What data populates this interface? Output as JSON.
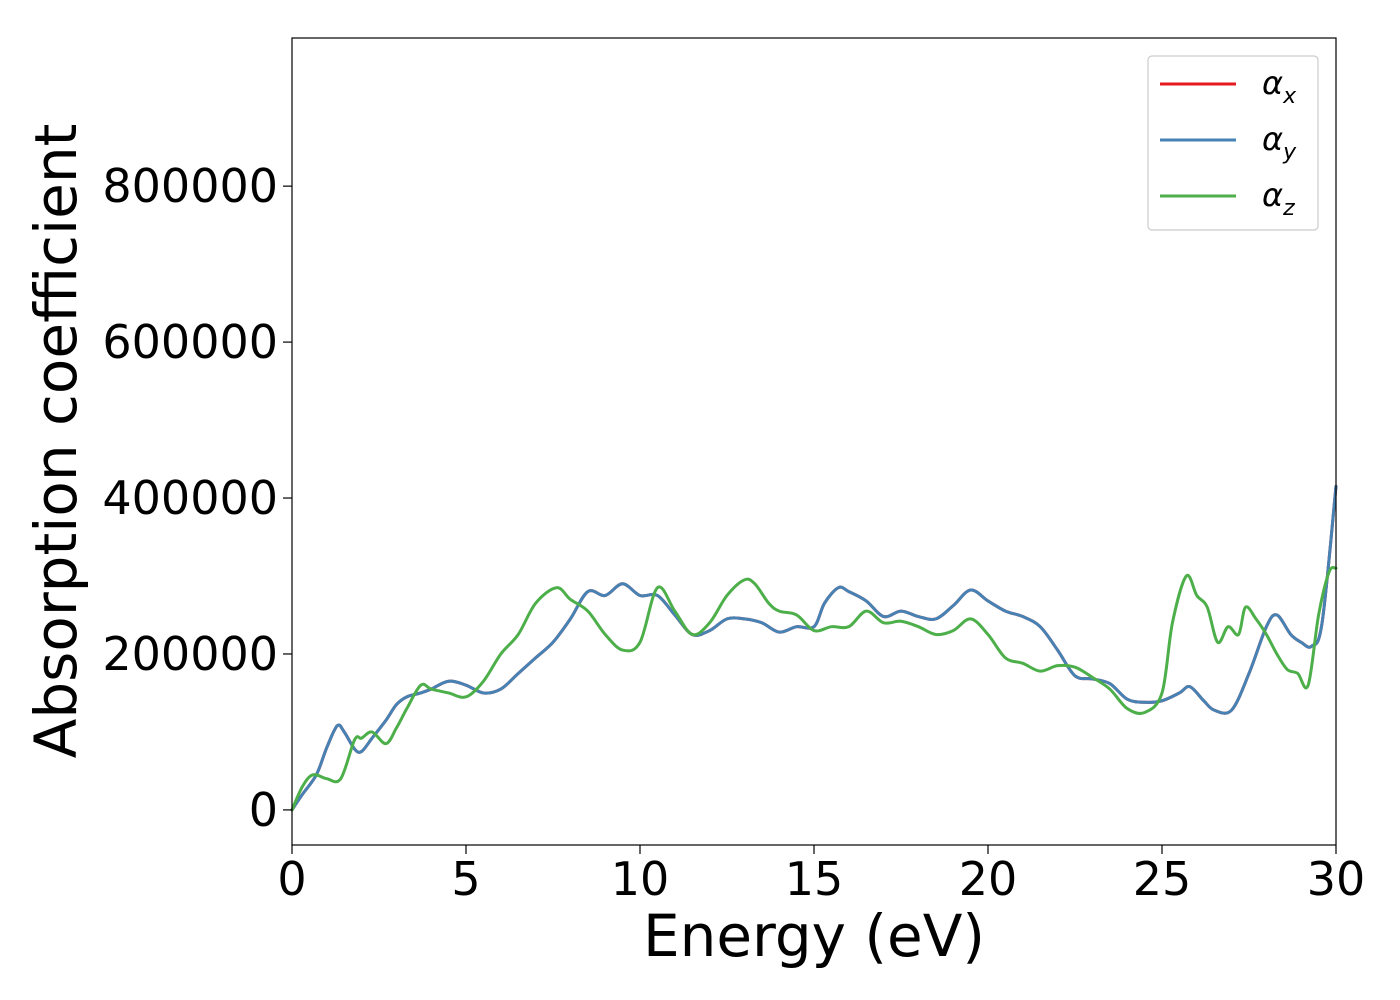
{
  "chart_data": {
    "type": "line",
    "xlabel": "Energy (eV)",
    "ylabel": "Absorption coefficient",
    "xlim": [
      0,
      30
    ],
    "ylim": [
      -45000,
      990000
    ],
    "xticks": [
      0,
      5,
      10,
      15,
      20,
      25,
      30
    ],
    "yticks": [
      0,
      200000,
      400000,
      600000,
      800000
    ],
    "xtick_labels": [
      "0",
      "5",
      "10",
      "15",
      "20",
      "25",
      "30"
    ],
    "ytick_labels": [
      "0",
      "200000",
      "400000",
      "600000",
      "800000"
    ],
    "grid": false,
    "legend_position": "top-right",
    "series": [
      {
        "name": "α",
        "subscript": "x",
        "color": "#e41a1c",
        "x": [
          0,
          0.3,
          0.7,
          1.0,
          1.3,
          1.5,
          1.8,
          2.0,
          2.3,
          2.7,
          3.0,
          3.3,
          3.7,
          4.0,
          4.5,
          5.0,
          5.5,
          6.0,
          6.5,
          7.0,
          7.5,
          8.0,
          8.5,
          9.0,
          9.5,
          10.0,
          10.5,
          11.0,
          11.5,
          12.0,
          12.5,
          13.0,
          13.5,
          14.0,
          14.5,
          15.0,
          15.3,
          15.7,
          16.0,
          16.5,
          17.0,
          17.5,
          18.0,
          18.5,
          19.0,
          19.5,
          20.0,
          20.5,
          21.0,
          21.5,
          22.0,
          22.5,
          23.0,
          23.5,
          24.0,
          24.5,
          25.0,
          25.5,
          25.8,
          26.2,
          26.5,
          27.0,
          27.5,
          28.0,
          28.3,
          28.7,
          29.0,
          29.3,
          29.6,
          30.0
        ],
        "values": [
          0,
          20000,
          45000,
          80000,
          108000,
          100000,
          78000,
          75000,
          92000,
          115000,
          135000,
          145000,
          150000,
          155000,
          165000,
          160000,
          150000,
          155000,
          175000,
          195000,
          215000,
          245000,
          280000,
          275000,
          290000,
          275000,
          275000,
          250000,
          225000,
          230000,
          245000,
          245000,
          240000,
          228000,
          235000,
          235000,
          265000,
          285000,
          280000,
          268000,
          248000,
          255000,
          248000,
          245000,
          262000,
          282000,
          268000,
          255000,
          248000,
          235000,
          205000,
          172000,
          168000,
          162000,
          142000,
          138000,
          140000,
          150000,
          158000,
          140000,
          128000,
          128000,
          175000,
          235000,
          250000,
          225000,
          215000,
          210000,
          240000,
          415000
        ]
      },
      {
        "name": "α",
        "subscript": "y",
        "color": "#4682b4",
        "x": [
          0,
          0.3,
          0.7,
          1.0,
          1.3,
          1.5,
          1.8,
          2.0,
          2.3,
          2.7,
          3.0,
          3.3,
          3.7,
          4.0,
          4.5,
          5.0,
          5.5,
          6.0,
          6.5,
          7.0,
          7.5,
          8.0,
          8.5,
          9.0,
          9.5,
          10.0,
          10.5,
          11.0,
          11.5,
          12.0,
          12.5,
          13.0,
          13.5,
          14.0,
          14.5,
          15.0,
          15.3,
          15.7,
          16.0,
          16.5,
          17.0,
          17.5,
          18.0,
          18.5,
          19.0,
          19.5,
          20.0,
          20.5,
          21.0,
          21.5,
          22.0,
          22.5,
          23.0,
          23.5,
          24.0,
          24.5,
          25.0,
          25.5,
          25.8,
          26.2,
          26.5,
          27.0,
          27.5,
          28.0,
          28.3,
          28.7,
          29.0,
          29.3,
          29.6,
          30.0
        ],
        "values": [
          0,
          20000,
          45000,
          80000,
          108000,
          100000,
          78000,
          75000,
          92000,
          115000,
          135000,
          145000,
          150000,
          155000,
          165000,
          160000,
          150000,
          155000,
          175000,
          195000,
          215000,
          245000,
          280000,
          275000,
          290000,
          275000,
          275000,
          250000,
          225000,
          230000,
          245000,
          245000,
          240000,
          228000,
          235000,
          235000,
          265000,
          285000,
          280000,
          268000,
          248000,
          255000,
          248000,
          245000,
          262000,
          282000,
          268000,
          255000,
          248000,
          235000,
          205000,
          172000,
          168000,
          162000,
          142000,
          138000,
          140000,
          150000,
          158000,
          140000,
          128000,
          128000,
          175000,
          235000,
          250000,
          225000,
          215000,
          210000,
          240000,
          415000
        ]
      },
      {
        "name": "α",
        "subscript": "z",
        "color": "#4daf4a",
        "x": [
          0,
          0.3,
          0.6,
          1.0,
          1.4,
          1.8,
          2.0,
          2.3,
          2.7,
          3.0,
          3.3,
          3.7,
          4.0,
          4.5,
          5.0,
          5.5,
          6.0,
          6.5,
          7.0,
          7.6,
          8.0,
          8.5,
          9.0,
          9.5,
          10.0,
          10.5,
          11.0,
          11.5,
          12.0,
          12.5,
          13.0,
          13.3,
          13.7,
          14.0,
          14.5,
          15.0,
          15.5,
          16.0,
          16.5,
          17.0,
          17.5,
          18.0,
          18.5,
          19.0,
          19.5,
          20.0,
          20.5,
          21.0,
          21.5,
          22.0,
          22.5,
          23.0,
          23.5,
          24.0,
          24.5,
          25.0,
          25.3,
          25.7,
          26.0,
          26.3,
          26.6,
          26.9,
          27.2,
          27.4,
          27.7,
          28.0,
          28.3,
          28.6,
          28.9,
          29.2,
          29.5,
          29.8,
          30.0
        ],
        "values": [
          0,
          30000,
          45000,
          40000,
          40000,
          90000,
          92000,
          100000,
          85000,
          105000,
          130000,
          160000,
          155000,
          150000,
          145000,
          165000,
          200000,
          225000,
          265000,
          285000,
          270000,
          255000,
          225000,
          205000,
          215000,
          285000,
          255000,
          225000,
          240000,
          275000,
          295000,
          290000,
          265000,
          255000,
          250000,
          230000,
          235000,
          235000,
          255000,
          240000,
          242000,
          235000,
          225000,
          230000,
          245000,
          225000,
          195000,
          188000,
          178000,
          185000,
          183000,
          170000,
          155000,
          130000,
          125000,
          150000,
          240000,
          300000,
          275000,
          260000,
          215000,
          235000,
          225000,
          260000,
          245000,
          225000,
          200000,
          180000,
          175000,
          160000,
          250000,
          305000,
          310000
        ]
      }
    ]
  }
}
